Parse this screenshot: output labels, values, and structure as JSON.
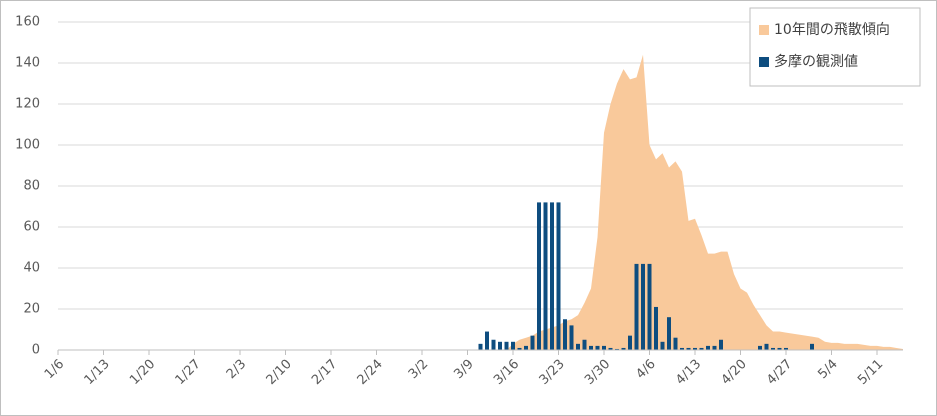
{
  "chart_data": {
    "type": "combo",
    "categories": [
      "1/6",
      null,
      null,
      null,
      null,
      null,
      null,
      "1/13",
      null,
      null,
      null,
      null,
      null,
      null,
      "1/20",
      null,
      null,
      null,
      null,
      null,
      null,
      "1/27",
      null,
      null,
      null,
      null,
      null,
      null,
      "2/3",
      null,
      null,
      null,
      null,
      null,
      null,
      "2/10",
      null,
      null,
      null,
      null,
      null,
      null,
      "2/17",
      null,
      null,
      null,
      null,
      null,
      null,
      "2/24",
      null,
      null,
      null,
      null,
      null,
      null,
      "3/2",
      null,
      null,
      null,
      null,
      null,
      null,
      "3/9",
      null,
      null,
      null,
      null,
      null,
      null,
      "3/16",
      null,
      null,
      null,
      null,
      null,
      null,
      "3/23",
      null,
      null,
      null,
      null,
      null,
      null,
      "3/30",
      null,
      null,
      null,
      null,
      null,
      null,
      "4/6",
      null,
      null,
      null,
      null,
      null,
      null,
      "4/13",
      null,
      null,
      null,
      null,
      null,
      null,
      "4/20",
      null,
      null,
      null,
      null,
      null,
      null,
      "4/27",
      null,
      null,
      null,
      null,
      null,
      null,
      "5/4",
      null,
      null,
      null,
      null,
      null,
      null,
      "5/11",
      null,
      null,
      null,
      null
    ],
    "series": [
      {
        "name": "10年間の飛散傾向",
        "type": "area",
        "color": "#f9c99b",
        "values": [
          0,
          0,
          0,
          0,
          0,
          0,
          0,
          0,
          0,
          0,
          0,
          0,
          0,
          0,
          0,
          0,
          0,
          0,
          0,
          0,
          0,
          0,
          0,
          0,
          0,
          0,
          0,
          0,
          0,
          0,
          0,
          0,
          0,
          0,
          0,
          0,
          0,
          0,
          0,
          0,
          0,
          0,
          0,
          0,
          0,
          0,
          0,
          0,
          0,
          0,
          0,
          0,
          0,
          0,
          0,
          0,
          0,
          0,
          0,
          0,
          0,
          0,
          0,
          0,
          0,
          0,
          0,
          0,
          0,
          0,
          3,
          5,
          6,
          7,
          9,
          10,
          11,
          12,
          14,
          15,
          17,
          23,
          30,
          55,
          106,
          120,
          130,
          137,
          132,
          133,
          144,
          100,
          93,
          96,
          89,
          92,
          87,
          63,
          64,
          56,
          47,
          47,
          48,
          48,
          37,
          30,
          28,
          22,
          17,
          12,
          9,
          9,
          8.5,
          8,
          7.5,
          7,
          6.5,
          6,
          4,
          3.5,
          3.5,
          3,
          3,
          3,
          2.5,
          2,
          2,
          1.5,
          1.5,
          1,
          0.5
        ]
      },
      {
        "name": "多摩の観測値",
        "type": "bar",
        "color": "#0e4d7f",
        "values": [
          0,
          0,
          0,
          0,
          0,
          0,
          0,
          0,
          0,
          0,
          0,
          0,
          0,
          0,
          0,
          0,
          0,
          0,
          0,
          0,
          0,
          0,
          0,
          0,
          0,
          0,
          0,
          0,
          0,
          0,
          0,
          0,
          0,
          0,
          0,
          0,
          0,
          0,
          0,
          0,
          0,
          0,
          0,
          0,
          0,
          0,
          0,
          0,
          0,
          0,
          0,
          0,
          0,
          0,
          0,
          0,
          0,
          0,
          0,
          0,
          0,
          0,
          0,
          0,
          0,
          3,
          9,
          5,
          4,
          4,
          4,
          1,
          2,
          7,
          72,
          72,
          72,
          72,
          15,
          12,
          3,
          5,
          2,
          2,
          2,
          1,
          0.5,
          1,
          7,
          42,
          42,
          42,
          21,
          4,
          16,
          6,
          1,
          1,
          1,
          1,
          2,
          2,
          5,
          0,
          0,
          0,
          0,
          0,
          2,
          3,
          1,
          1,
          1,
          0,
          0,
          0,
          3,
          0,
          0,
          0,
          0,
          0,
          0,
          0,
          0,
          0,
          0,
          0,
          0,
          0,
          0
        ]
      }
    ],
    "ylim": [
      0,
      160
    ],
    "yticks": [
      0,
      20,
      40,
      60,
      80,
      100,
      120,
      140,
      160
    ],
    "grid": true,
    "legend": "top-right"
  }
}
